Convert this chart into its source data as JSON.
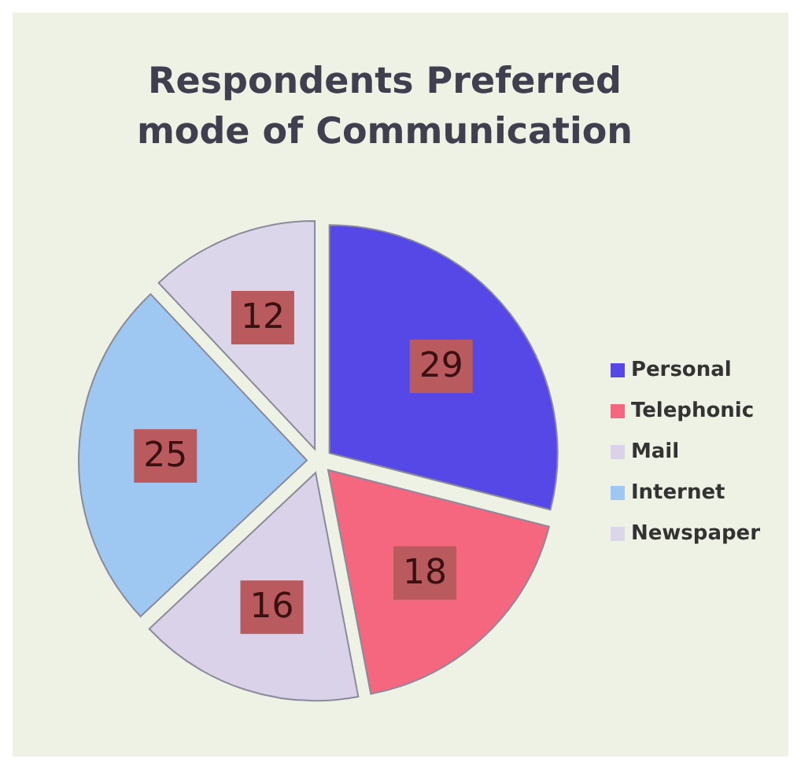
{
  "chart_data": {
    "type": "pie",
    "title": "Respondents Preferred mode of Communication",
    "categories": [
      "Personal",
      "Telephonic",
      "Mail",
      "Internet",
      "Newspaper"
    ],
    "values": [
      29,
      18,
      16,
      25,
      12
    ],
    "colors": [
      "#5548e6",
      "#f4677f",
      "#d9d2e9",
      "#9ec8f2",
      "#dcd6ea"
    ],
    "data_labels": true,
    "legend": "right"
  }
}
